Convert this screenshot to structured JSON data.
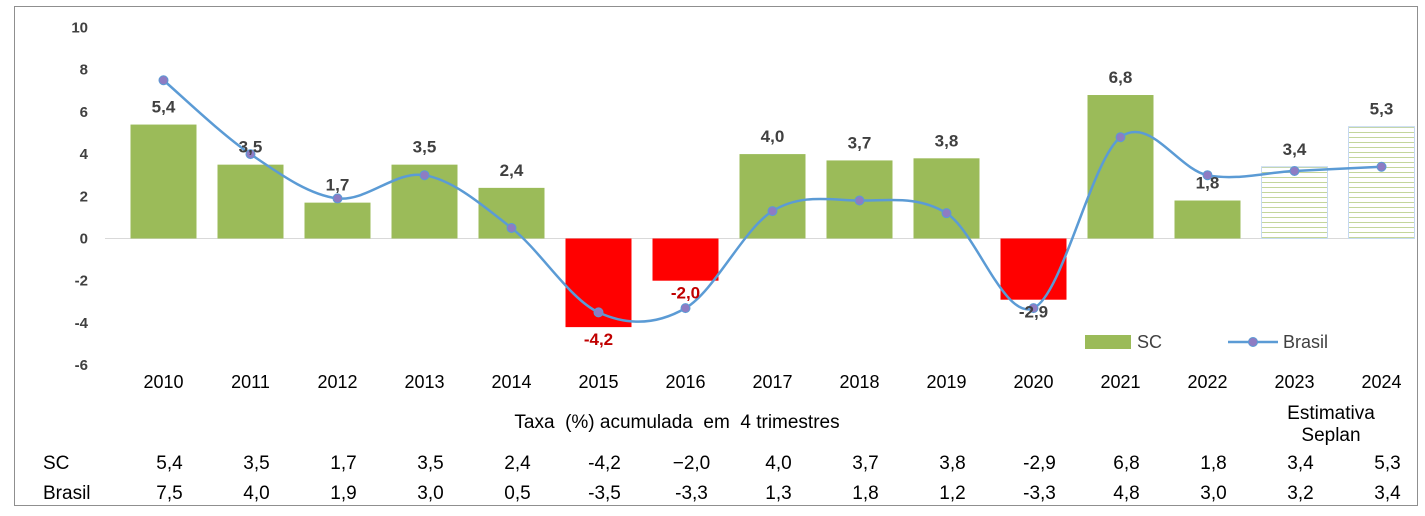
{
  "chart_data": {
    "type": "bar",
    "categories": [
      "2010",
      "2011",
      "2012",
      "2013",
      "2014",
      "2015",
      "2016",
      "2017",
      "2018",
      "2019",
      "2020",
      "2021",
      "2022",
      "2023",
      "2024"
    ],
    "series": [
      {
        "name": "SC",
        "type": "bar",
        "values": [
          5.4,
          3.5,
          1.7,
          3.5,
          2.4,
          -4.2,
          -2.0,
          4.0,
          3.7,
          3.8,
          -2.9,
          6.8,
          1.8,
          3.4,
          5.3
        ],
        "labels": [
          "5,4",
          "3,5",
          "1,7",
          "3,5",
          "2,4",
          "-4,2",
          "-2,0",
          "4,0",
          "3,7",
          "3,8",
          "-2,9",
          "6,8",
          "1,8",
          "3,4",
          "5,3"
        ]
      },
      {
        "name": "Brasil",
        "type": "line",
        "values": [
          7.5,
          4.0,
          1.9,
          3.0,
          0.5,
          -3.5,
          -3.3,
          1.3,
          1.8,
          1.2,
          -3.3,
          4.8,
          3.0,
          3.2,
          3.4
        ]
      }
    ],
    "ylim": [
      -6,
      10
    ],
    "yticks": [
      "10",
      "8",
      "6",
      "4",
      "2",
      "0",
      "-2",
      "-4",
      "-6"
    ],
    "xlabel": "Taxa  (%) acumulada  em  4 trimestres",
    "estimate_note": [
      "Estimativa",
      "Seplan"
    ],
    "legend_position": "bottom-right",
    "colors": {
      "positive_bar": "#9bbb59",
      "negative_bar": "#ff0000",
      "estimate_bar_fill": "#ffffff",
      "estimate_bar_stripe": "#c3d69b",
      "line": "#5b9bd5",
      "marker": "#8e7cc3",
      "negative_label": "#c00000"
    }
  },
  "table": {
    "rows": [
      {
        "label": "SC",
        "values": [
          "5,4",
          "3,5",
          "1,7",
          "3,5",
          "2,4",
          "-4,2",
          "−2,0",
          "4,0",
          "3,7",
          "3,8",
          "-2,9",
          "6,8",
          "1,8",
          "3,4",
          "5,3"
        ]
      },
      {
        "label": "Brasil",
        "values": [
          "7,5",
          "4,0",
          "1,9",
          "3,0",
          "0,5",
          "-3,5",
          "-3,3",
          "1,3",
          "1,8",
          "1,2",
          "-3,3",
          "4,8",
          "3,0",
          "3,2",
          "3,4"
        ]
      }
    ]
  }
}
